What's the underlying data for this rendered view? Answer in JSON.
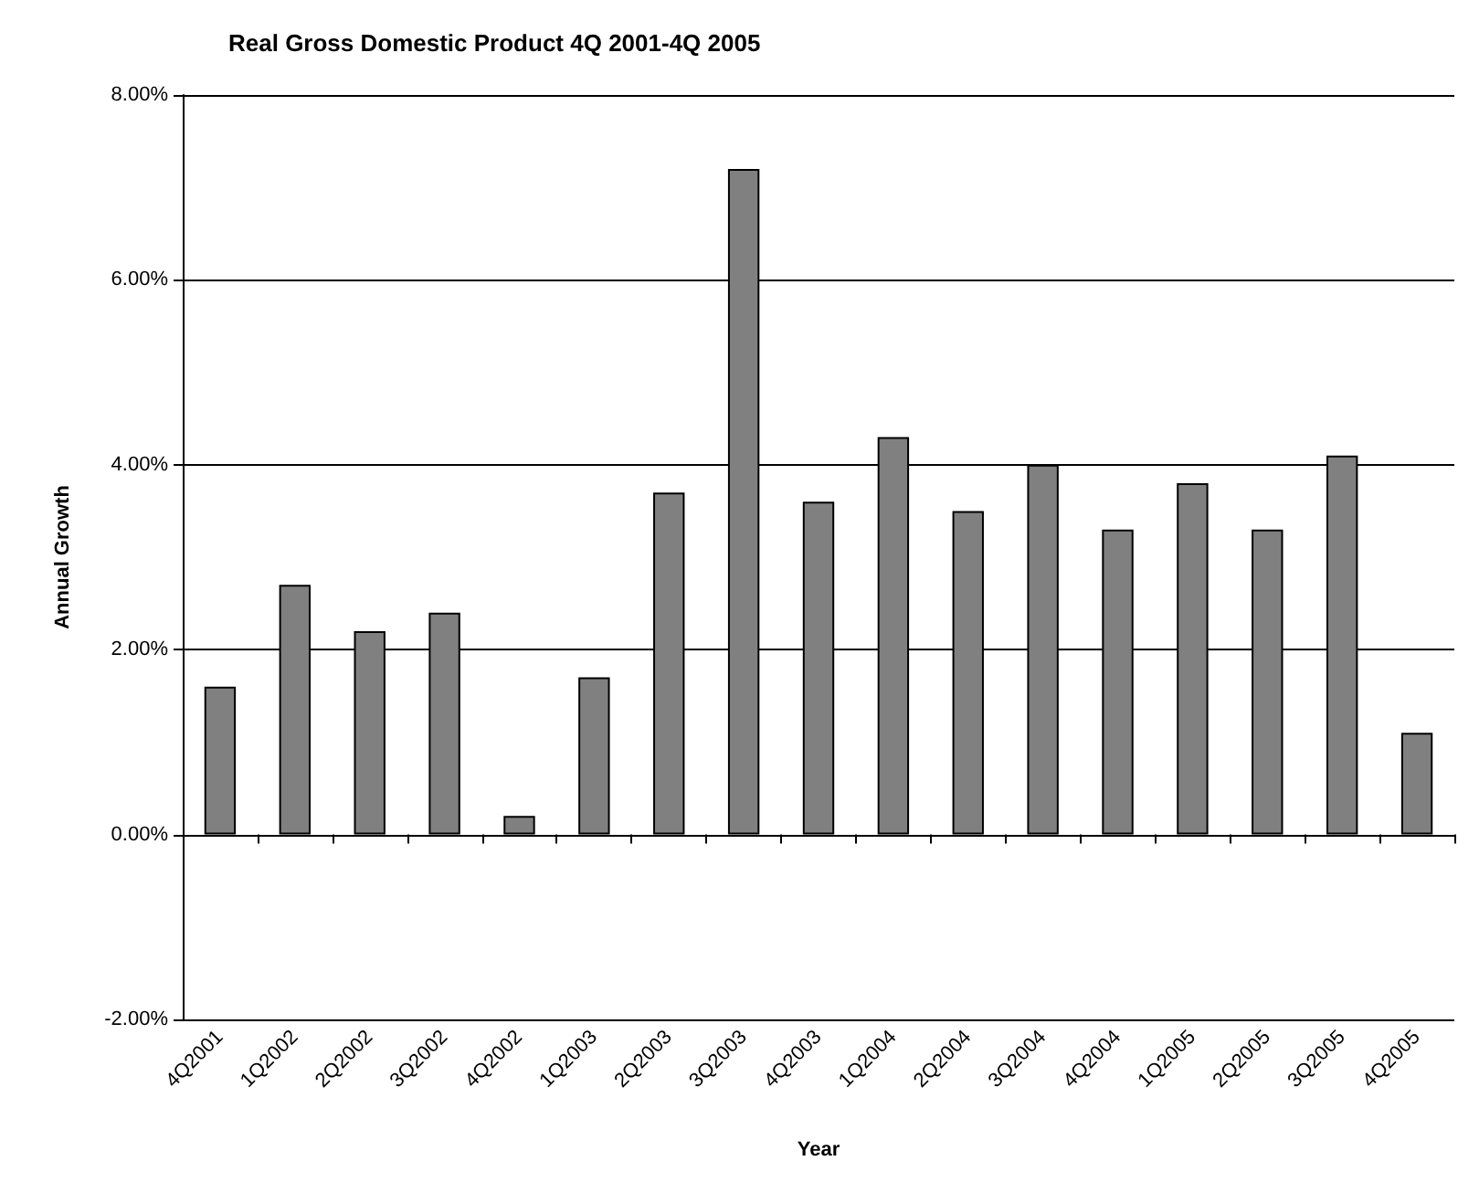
{
  "chart_data": {
    "type": "bar",
    "title": "Real Gross Domestic Product 4Q 2001-4Q 2005",
    "xlabel": "Year",
    "ylabel": "Annual Growth",
    "categories": [
      "4Q2001",
      "1Q2002",
      "2Q2002",
      "3Q2002",
      "4Q2002",
      "1Q2003",
      "2Q2003",
      "3Q2003",
      "4Q2003",
      "1Q2004",
      "2Q2004",
      "3Q2004",
      "4Q2004",
      "1Q2005",
      "2Q2005",
      "3Q2005",
      "4Q2005"
    ],
    "values": [
      1.6,
      2.7,
      2.2,
      2.4,
      0.2,
      1.7,
      3.7,
      7.2,
      3.6,
      4.3,
      3.5,
      4.0,
      3.3,
      3.8,
      3.3,
      4.1,
      1.1
    ],
    "color": "#808080",
    "ylim": [
      -2,
      8
    ],
    "yticks": [
      {
        "value": -2,
        "label": "-2.00%"
      },
      {
        "value": 0,
        "label": "0.00%"
      },
      {
        "value": 2,
        "label": "2.00%"
      },
      {
        "value": 4,
        "label": "4.00%"
      },
      {
        "value": 6,
        "label": "6.00%"
      },
      {
        "value": 8,
        "label": "8.00%"
      }
    ],
    "grid": "y"
  }
}
